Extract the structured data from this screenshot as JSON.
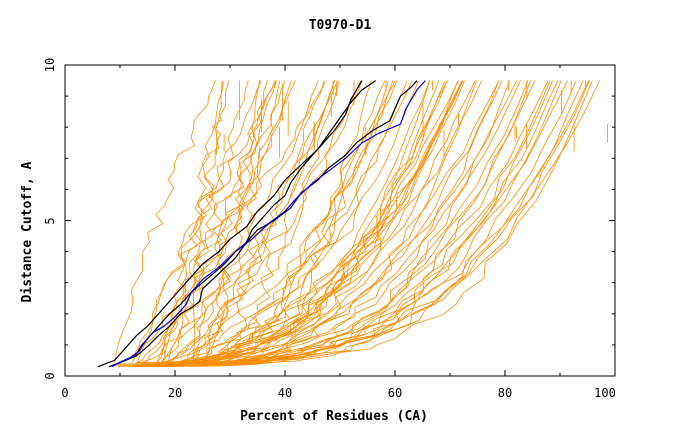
{
  "chart_data": {
    "type": "line",
    "title": "T0970-D1",
    "xlabel": "Percent of Residues (CA)",
    "ylabel": "Distance Cutoff, A",
    "xlim": [
      0,
      100
    ],
    "ylim": [
      0,
      10
    ],
    "x_ticks": [
      "0",
      "20",
      "40",
      "60",
      "80",
      "100"
    ],
    "y_ticks": [
      "0",
      "5",
      "10"
    ],
    "grid": false,
    "legend": "none",
    "colors": {
      "others": "#ff8c00",
      "highlight": "#0000ff",
      "reference": "#000000"
    },
    "background_series_count": 70,
    "highlight_series": {
      "points": [
        [
          8.5,
          0.3
        ],
        [
          10,
          0.45
        ],
        [
          12,
          0.6
        ],
        [
          13.5,
          0.8
        ],
        [
          14.5,
          1.1
        ],
        [
          16,
          1.4
        ],
        [
          18,
          1.6
        ],
        [
          20,
          1.9
        ],
        [
          22,
          2.3
        ],
        [
          23,
          2.7
        ],
        [
          25,
          3.1
        ],
        [
          28,
          3.5
        ],
        [
          31,
          4.0
        ],
        [
          34,
          4.4
        ],
        [
          37,
          4.9
        ],
        [
          40,
          5.3
        ],
        [
          42,
          5.7
        ],
        [
          45,
          6.2
        ],
        [
          48,
          6.6
        ],
        [
          51,
          7.0
        ],
        [
          54,
          7.5
        ],
        [
          57,
          7.8
        ],
        [
          61,
          8.1
        ],
        [
          62,
          8.6
        ],
        [
          64,
          9.2
        ],
        [
          65.5,
          9.5
        ]
      ]
    },
    "reference_series": [
      {
        "points": [
          [
            6,
            0.3
          ],
          [
            9,
            0.5
          ],
          [
            11,
            0.9
          ],
          [
            13,
            1.3
          ],
          [
            15,
            1.6
          ],
          [
            17,
            2.0
          ],
          [
            19,
            2.4
          ],
          [
            21,
            2.8
          ],
          [
            23,
            3.2
          ],
          [
            25,
            3.6
          ],
          [
            28,
            4.0
          ],
          [
            30,
            4.4
          ],
          [
            33,
            4.8
          ],
          [
            35,
            5.3
          ],
          [
            38,
            5.8
          ],
          [
            40,
            6.3
          ],
          [
            43,
            6.8
          ],
          [
            46,
            7.3
          ],
          [
            48,
            7.8
          ],
          [
            50,
            8.3
          ],
          [
            52,
            8.8
          ],
          [
            54,
            9.2
          ],
          [
            56.5,
            9.5
          ]
        ]
      },
      {
        "points": [
          [
            9,
            0.35
          ],
          [
            11,
            0.5
          ],
          [
            13,
            0.7
          ],
          [
            14,
            1.0
          ],
          [
            15,
            1.2
          ],
          [
            17,
            1.6
          ],
          [
            19,
            2.0
          ],
          [
            21,
            2.3
          ],
          [
            23,
            2.7
          ],
          [
            25,
            3.0
          ],
          [
            27,
            3.3
          ],
          [
            29,
            3.6
          ],
          [
            31,
            4.0
          ],
          [
            33,
            4.3
          ],
          [
            34,
            4.7
          ],
          [
            36,
            5.1
          ],
          [
            38,
            5.5
          ],
          [
            40,
            5.8
          ],
          [
            41,
            6.2
          ],
          [
            43,
            6.7
          ],
          [
            45,
            7.1
          ],
          [
            47,
            7.5
          ],
          [
            49,
            7.9
          ],
          [
            51,
            8.4
          ],
          [
            52,
            8.9
          ],
          [
            53,
            9.2
          ],
          [
            54,
            9.5
          ]
        ]
      },
      {
        "points": [
          [
            8,
            0.3
          ],
          [
            11,
            0.5
          ],
          [
            13,
            0.65
          ],
          [
            15,
            0.95
          ],
          [
            17,
            1.3
          ],
          [
            19,
            1.6
          ],
          [
            21,
            2.0
          ],
          [
            23,
            2.2
          ],
          [
            24.5,
            2.4
          ],
          [
            25,
            2.8
          ],
          [
            28,
            3.3
          ],
          [
            31,
            3.8
          ],
          [
            33,
            4.3
          ],
          [
            35,
            4.7
          ],
          [
            38,
            5.0
          ],
          [
            41,
            5.4
          ],
          [
            43,
            5.9
          ],
          [
            46,
            6.3
          ],
          [
            48,
            6.7
          ],
          [
            51,
            7.1
          ],
          [
            53,
            7.5
          ],
          [
            56,
            7.9
          ],
          [
            59,
            8.2
          ],
          [
            60,
            8.6
          ],
          [
            61,
            9.0
          ],
          [
            63,
            9.3
          ],
          [
            64,
            9.5
          ]
        ]
      }
    ]
  }
}
